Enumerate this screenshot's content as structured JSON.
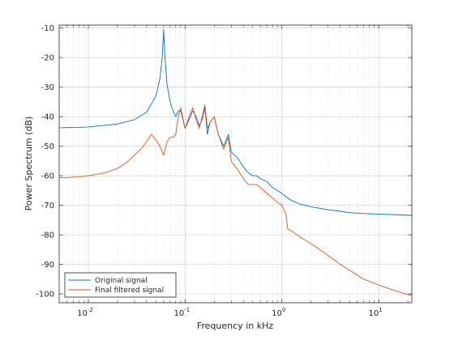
{
  "chart_data": {
    "type": "line",
    "title": "",
    "xlabel": "Frequency in kHz",
    "ylabel": "Power Spectrum (dB)",
    "xscale": "log",
    "xlim": [
      0.005,
      22
    ],
    "ylim": [
      -103,
      -9
    ],
    "grid": true,
    "minor_grid": true,
    "legend_position": "bottom-left",
    "x_ticks": [
      {
        "value": 0.01,
        "label": "10",
        "exp": "-2"
      },
      {
        "value": 0.1,
        "label": "10",
        "exp": "-1"
      },
      {
        "value": 1,
        "label": "10",
        "exp": "0"
      },
      {
        "value": 10,
        "label": "10",
        "exp": "1"
      }
    ],
    "y_ticks": [
      -10,
      -20,
      -30,
      -40,
      -50,
      -60,
      -70,
      -80,
      -90,
      -100
    ],
    "series": [
      {
        "name": "Original signal",
        "color": "#0072BD",
        "x": [
          0.005,
          0.01,
          0.02,
          0.03,
          0.04,
          0.05,
          0.055,
          0.058,
          0.06,
          0.062,
          0.065,
          0.07,
          0.075,
          0.08,
          0.085,
          0.09,
          0.1,
          0.11,
          0.12,
          0.13,
          0.14,
          0.15,
          0.16,
          0.17,
          0.18,
          0.2,
          0.22,
          0.25,
          0.28,
          0.3,
          0.35,
          0.4,
          0.45,
          0.5,
          0.55,
          0.6,
          0.7,
          0.8,
          0.9,
          1.0,
          1.2,
          1.5,
          2,
          3,
          4,
          5,
          7,
          10,
          15,
          22
        ],
        "values": [
          -43.8,
          -43.5,
          -42.5,
          -41,
          -38.5,
          -33,
          -27,
          -20,
          -10.5,
          -20,
          -29,
          -35,
          -38,
          -40,
          -38,
          -38,
          -44,
          -41,
          -38,
          -40,
          -43,
          -41,
          -37,
          -46,
          -42,
          -40,
          -46,
          -50,
          -46,
          -52,
          -54,
          -57,
          -59,
          -60,
          -60,
          -61,
          -62,
          -64,
          -65,
          -66,
          -68,
          -69.5,
          -70.5,
          -71.5,
          -72,
          -72.5,
          -72.8,
          -73,
          -73.2,
          -73.4
        ]
      },
      {
        "name": "Final filtered signal",
        "color": "#D95319",
        "x": [
          0.005,
          0.008,
          0.01,
          0.015,
          0.02,
          0.025,
          0.03,
          0.035,
          0.04,
          0.045,
          0.05,
          0.055,
          0.06,
          0.065,
          0.07,
          0.075,
          0.08,
          0.085,
          0.09,
          0.1,
          0.11,
          0.12,
          0.13,
          0.14,
          0.15,
          0.16,
          0.17,
          0.18,
          0.2,
          0.22,
          0.25,
          0.28,
          0.3,
          0.35,
          0.4,
          0.45,
          0.5,
          0.55,
          0.6,
          0.7,
          0.8,
          0.9,
          1.0,
          1.1,
          1.15,
          1.3,
          1.5,
          2,
          3,
          4,
          5,
          7,
          10,
          15,
          22
        ],
        "values": [
          -60.7,
          -60.4,
          -60,
          -59,
          -57.5,
          -55.5,
          -53,
          -51,
          -48.5,
          -46,
          -48,
          -50,
          -53,
          -48.5,
          -47,
          -47,
          -46,
          -40,
          -37,
          -44,
          -40,
          -37,
          -41,
          -44,
          -40,
          -36,
          -44,
          -42,
          -40,
          -46,
          -51,
          -47,
          -55,
          -58,
          -61,
          -63,
          -63,
          -63,
          -64,
          -66,
          -67.5,
          -69,
          -70,
          -73,
          -78,
          -79,
          -80.5,
          -83,
          -87,
          -90,
          -92,
          -95,
          -97,
          -99,
          -100.6
        ]
      }
    ]
  }
}
